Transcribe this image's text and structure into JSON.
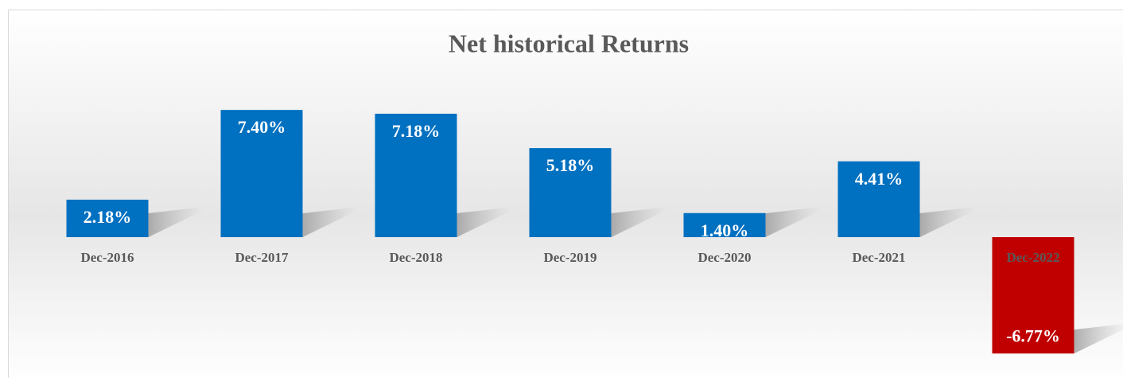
{
  "chart_data": {
    "type": "bar",
    "title": "Net historical Returns",
    "categories": [
      "Dec-2016",
      "Dec-2017",
      "Dec-2018",
      "Dec-2019",
      "Dec-2020",
      "Dec-2021",
      "Dec-2022"
    ],
    "values": [
      2.18,
      7.4,
      7.18,
      5.18,
      1.4,
      4.41,
      -6.77
    ],
    "value_labels": [
      "2.18%",
      "7.40%",
      "7.18%",
      "5.18%",
      "1.40%",
      "4.41%",
      "-6.77%"
    ],
    "colors": [
      "#0070c0",
      "#0070c0",
      "#0070c0",
      "#0070c0",
      "#0070c0",
      "#0070c0",
      "#c00000"
    ]
  }
}
